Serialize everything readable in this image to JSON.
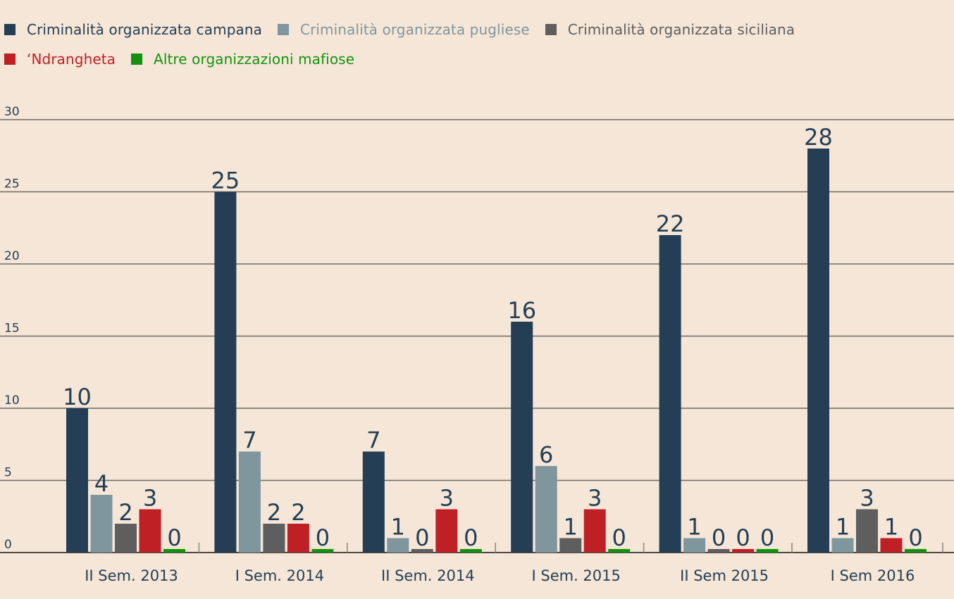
{
  "chart_data": {
    "type": "bar",
    "title": "",
    "xlabel": "",
    "ylabel": "",
    "ylim": [
      0,
      30
    ],
    "yticks": [
      0,
      5,
      10,
      15,
      20,
      25,
      30
    ],
    "grid": true,
    "legend_position": "top-left",
    "categories": [
      "II Sem. 2013",
      "I Sem. 2014",
      "II Sem. 2014",
      "I Sem. 2015",
      "II Sem 2015",
      "I Sem 2016"
    ],
    "series": [
      {
        "name": "Criminalità organizzata campana",
        "color": "#243f55",
        "values": [
          10,
          25,
          7,
          16,
          22,
          28
        ]
      },
      {
        "name": "Criminalità organizzata pugliese",
        "color": "#7f969e",
        "values": [
          4,
          7,
          1,
          6,
          1,
          1
        ]
      },
      {
        "name": "Criminalità organizzata siciliana",
        "color": "#5e5e5e",
        "values": [
          2,
          2,
          0,
          1,
          0,
          3
        ]
      },
      {
        "name": "‘Ndrangheta",
        "color": "#bf2026",
        "values": [
          3,
          2,
          3,
          3,
          0,
          1
        ]
      },
      {
        "name": "Altre organizzazioni mafiose",
        "color": "#14920f",
        "values": [
          0,
          0,
          0,
          0,
          0,
          0
        ]
      }
    ]
  }
}
